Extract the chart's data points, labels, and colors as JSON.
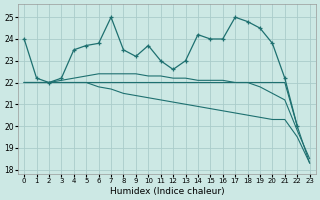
{
  "xlabel": "Humidex (Indice chaleur)",
  "bg_color": "#cce8e4",
  "grid_color": "#aaccca",
  "line_color": "#1e7070",
  "xlim": [
    -0.5,
    23.5
  ],
  "ylim": [
    17.8,
    25.6
  ],
  "yticks": [
    18,
    19,
    20,
    21,
    22,
    23,
    24,
    25
  ],
  "xticks": [
    0,
    1,
    2,
    3,
    4,
    5,
    6,
    7,
    8,
    9,
    10,
    11,
    12,
    13,
    14,
    15,
    16,
    17,
    18,
    19,
    20,
    21,
    22,
    23
  ],
  "series1_x": [
    0,
    1,
    2,
    3,
    4,
    5,
    6,
    7,
    8,
    9,
    10,
    11,
    12,
    13,
    14,
    15,
    16,
    17,
    18,
    19,
    20,
    21,
    22
  ],
  "series1_y": [
    24.0,
    22.2,
    22.0,
    22.2,
    23.5,
    23.7,
    23.8,
    25.0,
    23.5,
    23.2,
    23.7,
    23.0,
    22.6,
    23.0,
    24.2,
    24.0,
    24.0,
    25.0,
    24.8,
    24.5,
    23.8,
    22.2,
    20.0
  ],
  "series2_x": [
    0,
    1,
    2,
    3,
    4,
    5,
    6,
    7,
    8,
    9,
    10,
    11,
    12,
    13,
    14,
    15,
    16,
    17,
    18,
    19,
    20,
    21,
    22,
    23
  ],
  "series2_y": [
    22.0,
    22.0,
    22.0,
    22.0,
    22.0,
    22.0,
    22.0,
    22.0,
    22.0,
    22.0,
    22.0,
    22.0,
    22.0,
    22.0,
    22.0,
    22.0,
    22.0,
    22.0,
    22.0,
    22.0,
    22.0,
    22.0,
    20.0,
    18.3
  ],
  "series3_x": [
    0,
    1,
    2,
    3,
    4,
    5,
    6,
    7,
    8,
    9,
    10,
    11,
    12,
    13,
    14,
    15,
    16,
    17,
    18,
    19,
    20,
    21,
    22,
    23
  ],
  "series3_y": [
    22.0,
    22.0,
    22.0,
    22.1,
    22.2,
    22.3,
    22.4,
    22.4,
    22.4,
    22.4,
    22.3,
    22.3,
    22.2,
    22.2,
    22.1,
    22.1,
    22.1,
    22.0,
    22.0,
    21.8,
    21.5,
    21.2,
    19.8,
    18.5
  ],
  "series4_x": [
    0,
    1,
    2,
    3,
    4,
    5,
    6,
    7,
    8,
    9,
    10,
    11,
    12,
    13,
    14,
    15,
    16,
    17,
    18,
    19,
    20,
    21,
    22,
    23
  ],
  "series4_y": [
    22.0,
    22.0,
    22.0,
    22.0,
    22.0,
    22.0,
    21.8,
    21.7,
    21.5,
    21.4,
    21.3,
    21.2,
    21.1,
    21.0,
    20.9,
    20.8,
    20.7,
    20.6,
    20.5,
    20.4,
    20.3,
    20.3,
    19.5,
    18.3
  ]
}
